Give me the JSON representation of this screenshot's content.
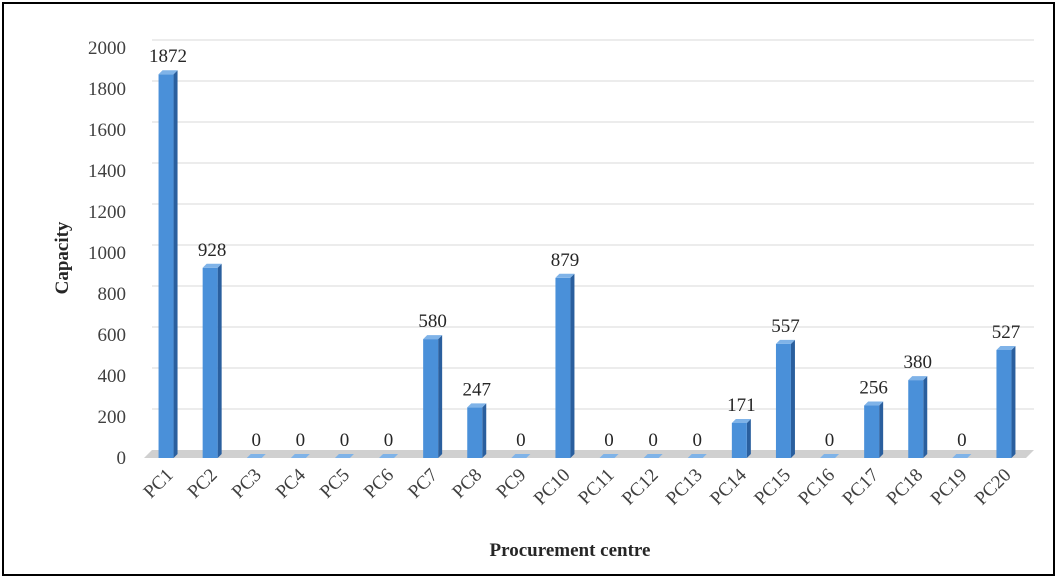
{
  "chart_data": {
    "type": "bar",
    "style": "3d-column",
    "categories": [
      "PC1",
      "PC2",
      "PC3",
      "PC4",
      "PC5",
      "PC6",
      "PC7",
      "PC8",
      "PC9",
      "PC10",
      "PC11",
      "PC12",
      "PC13",
      "PC14",
      "PC15",
      "PC16",
      "PC17",
      "PC18",
      "PC19",
      "PC20"
    ],
    "values": [
      1872,
      928,
      0,
      0,
      0,
      0,
      580,
      247,
      0,
      879,
      0,
      0,
      0,
      171,
      557,
      0,
      256,
      380,
      0,
      527
    ],
    "data_labels": [
      "1872",
      "928",
      "0",
      "0",
      "0",
      "0",
      "580",
      "247",
      "0",
      "879",
      "0",
      "0",
      "0",
      "171",
      "557",
      "0",
      "256",
      "380",
      "0",
      "527"
    ],
    "xlabel": "Procurement centre",
    "ylabel": "Capacity",
    "ylim": [
      0,
      2000
    ],
    "yticks": [
      "0",
      "200",
      "400",
      "600",
      "800",
      "1000",
      "1200",
      "1400",
      "1600",
      "1800",
      "2000"
    ],
    "grid": true,
    "legend": "none",
    "colors": {
      "bar_front": "#4a90d9",
      "bar_side": "#2a5f9e",
      "bar_top": "#7fb3e8",
      "grid": "#d9d9d9",
      "floor": "#d0d0d0"
    }
  }
}
